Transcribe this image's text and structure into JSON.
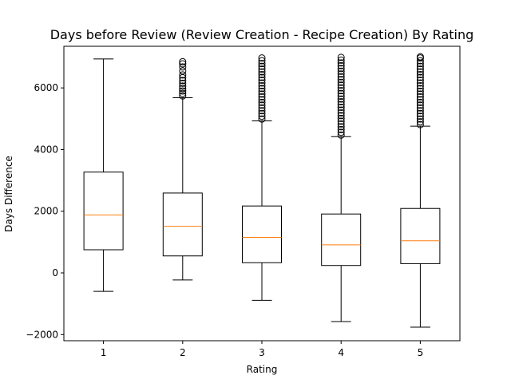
{
  "chart_data": {
    "type": "boxplot",
    "title": "Days before Review (Review Creation - Recipe Creation) By Rating",
    "xlabel": "Rating",
    "ylabel": "Days Difference",
    "categories": [
      "1",
      "2",
      "3",
      "4",
      "5"
    ],
    "ylim": [
      -2200,
      7350
    ],
    "yticks": [
      -2000,
      0,
      2000,
      4000,
      6000
    ],
    "grid": false,
    "colors": {
      "box": "#000000",
      "median": "#ff7f0e",
      "whisker": "#000000",
      "flier": "#000000"
    },
    "boxes": [
      {
        "category": "1",
        "whisker_low": -600,
        "q1": 750,
        "median": 1880,
        "q3": 3270,
        "whisker_high": 6940,
        "fliers": []
      },
      {
        "category": "2",
        "whisker_low": -230,
        "q1": 550,
        "median": 1510,
        "q3": 2590,
        "whisker_high": 5680,
        "fliers": [
          5740,
          5820,
          5900,
          5980,
          6060,
          6150,
          6240,
          6330,
          6420,
          6550,
          6680,
          6780,
          6850
        ]
      },
      {
        "category": "3",
        "whisker_low": -890,
        "q1": 330,
        "median": 1150,
        "q3": 2170,
        "whisker_high": 4930,
        "fliers": [
          4990,
          5080,
          5170,
          5260,
          5350,
          5440,
          5530,
          5620,
          5710,
          5800,
          5890,
          5980,
          6070,
          6160,
          6250,
          6340,
          6430,
          6520,
          6610,
          6700,
          6790,
          6880,
          6970
        ]
      },
      {
        "category": "4",
        "whisker_low": -1580,
        "q1": 240,
        "median": 910,
        "q3": 1910,
        "whisker_high": 4420,
        "fliers": [
          4470,
          4560,
          4650,
          4740,
          4830,
          4920,
          5010,
          5100,
          5190,
          5280,
          5370,
          5460,
          5550,
          5640,
          5730,
          5820,
          5910,
          6000,
          6090,
          6180,
          6270,
          6360,
          6450,
          6540,
          6630,
          6720,
          6810,
          6900,
          6990
        ]
      },
      {
        "category": "5",
        "whisker_low": -1760,
        "q1": 300,
        "median": 1040,
        "q3": 2090,
        "whisker_high": 4760,
        "fliers": [
          4810,
          4900,
          4990,
          5080,
          5170,
          5260,
          5350,
          5440,
          5530,
          5620,
          5710,
          5800,
          5890,
          5980,
          6070,
          6160,
          6250,
          6340,
          6430,
          6520,
          6610,
          6700,
          6790,
          6880,
          6970,
          7010
        ]
      }
    ]
  }
}
